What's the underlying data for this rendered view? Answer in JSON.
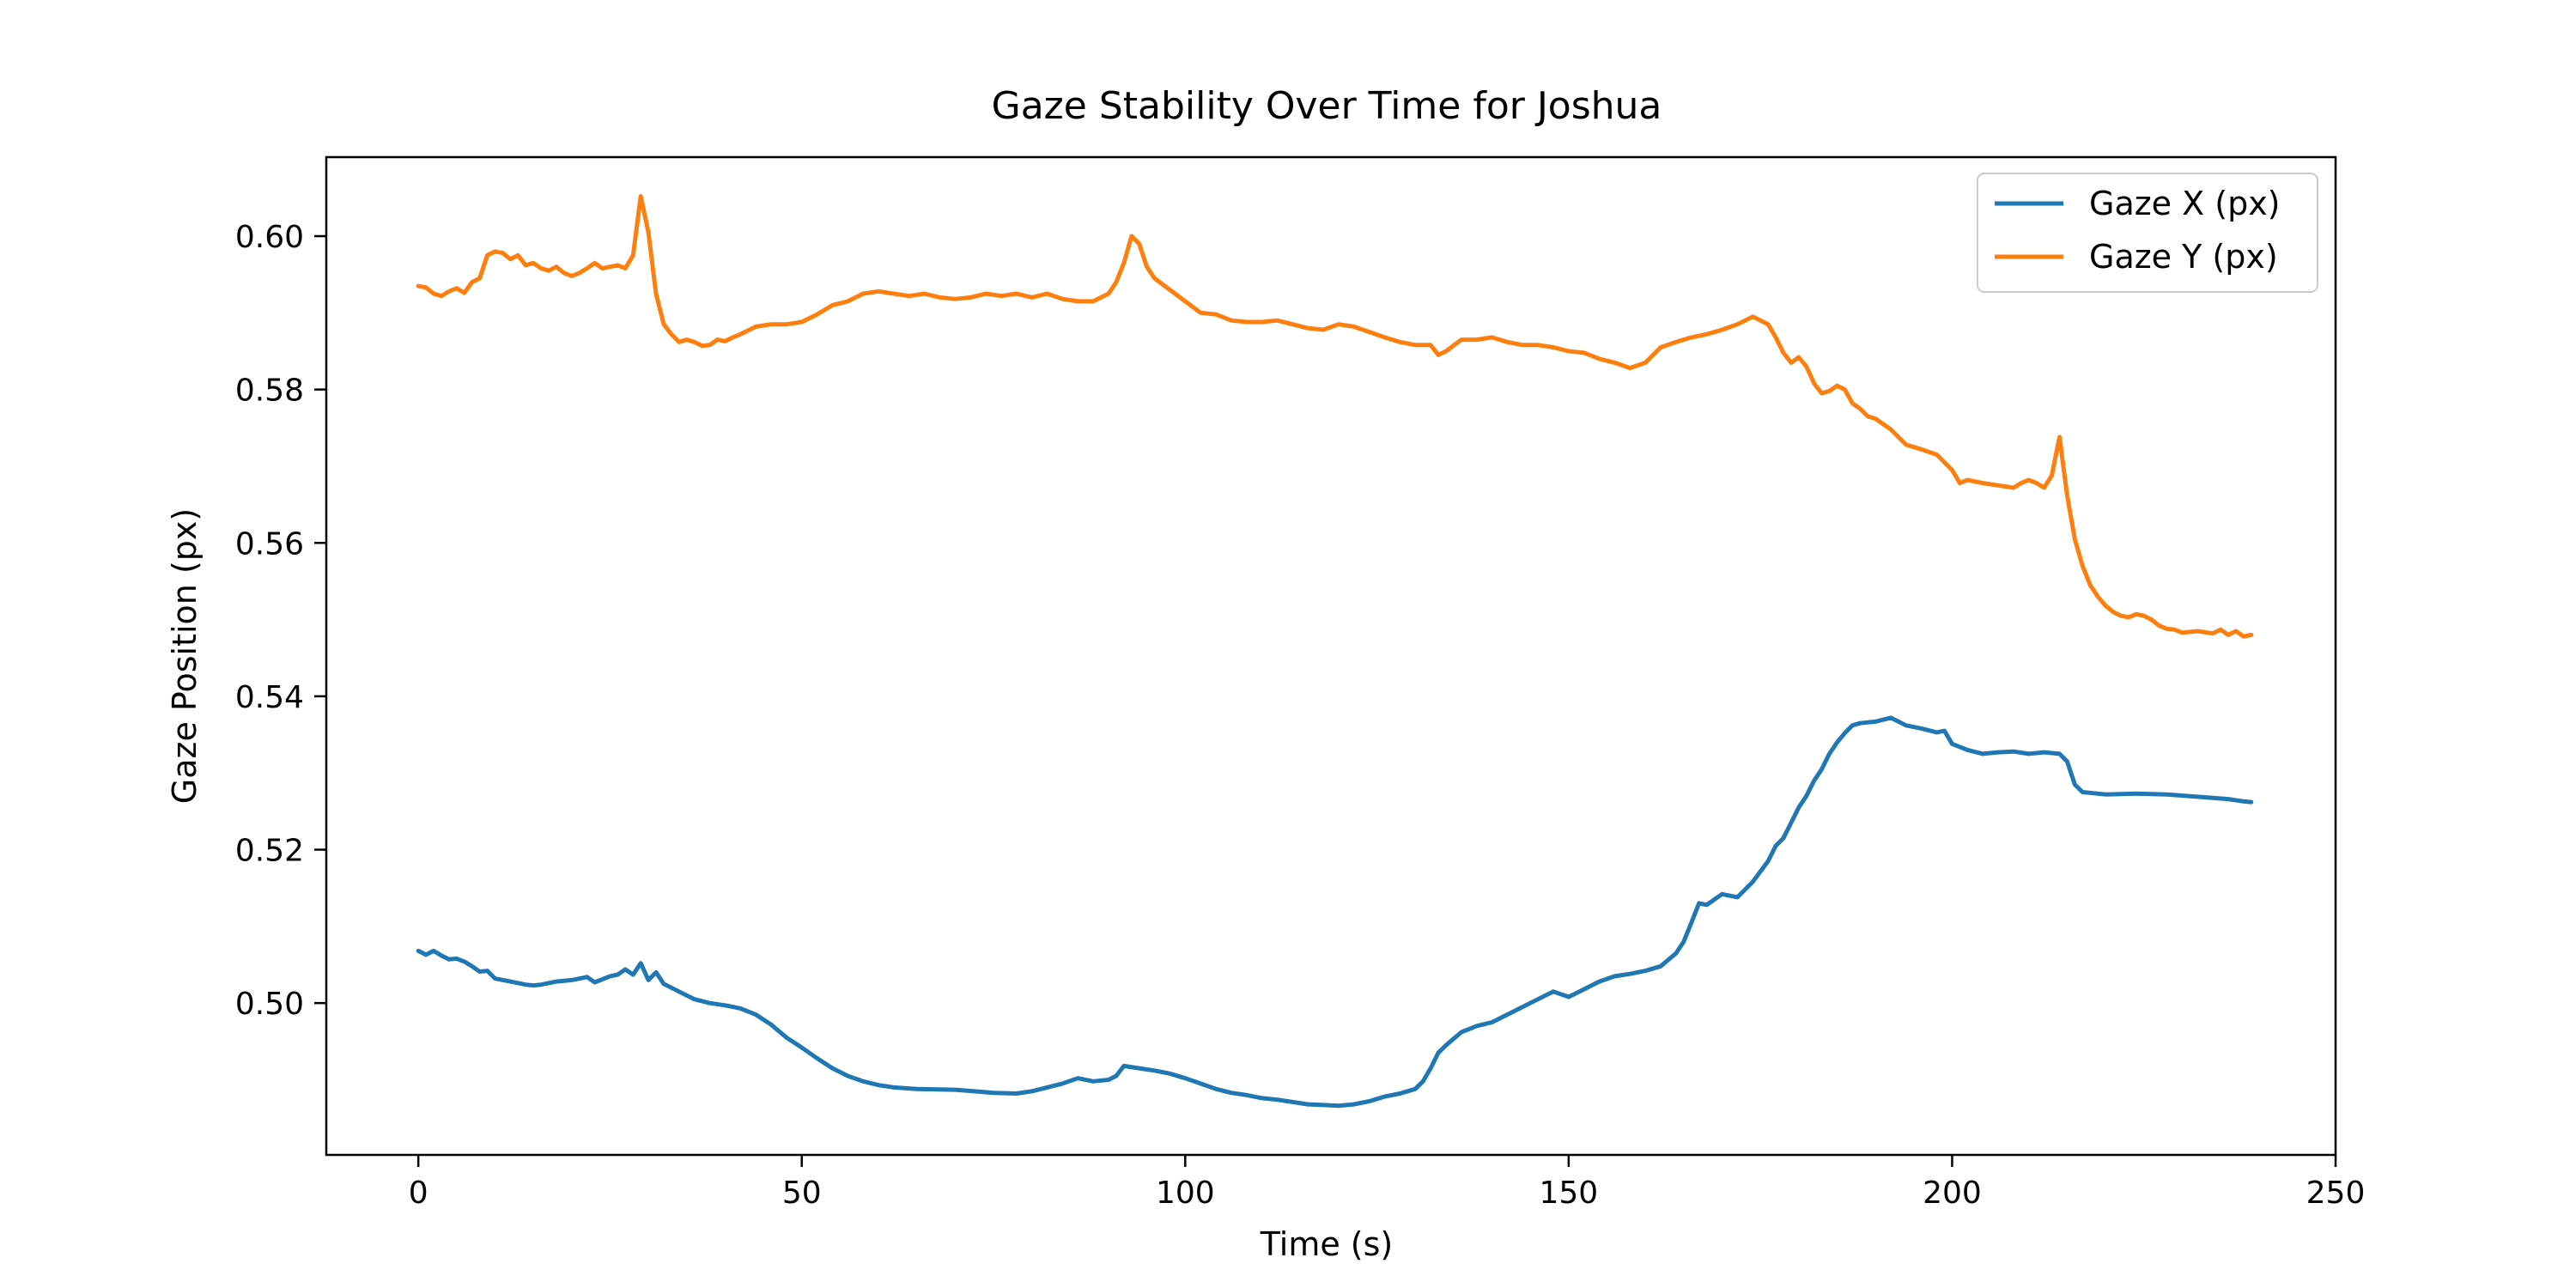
{
  "chart_data": {
    "type": "line",
    "title": "Gaze Stability Over Time for Joshua",
    "xlabel": "Time (s)",
    "ylabel": "Gaze Position (px)",
    "xlim": [
      -12,
      250
    ],
    "ylim": [
      0.4802,
      0.6103
    ],
    "xticks": [
      0,
      50,
      100,
      150,
      200,
      250
    ],
    "xtick_labels": [
      "0",
      "50",
      "100",
      "150",
      "200",
      "250"
    ],
    "yticks": [
      0.5,
      0.52,
      0.54,
      0.56,
      0.58,
      0.6
    ],
    "ytick_labels": [
      "0.50",
      "0.52",
      "0.54",
      "0.56",
      "0.58",
      "0.60"
    ],
    "grid": false,
    "legend": "top-right",
    "series": [
      {
        "name": "Gaze X (px)",
        "color": "#1f77b4",
        "points": [
          [
            0,
            0.5068
          ],
          [
            1,
            0.5063
          ],
          [
            2,
            0.5068
          ],
          [
            3,
            0.5062
          ],
          [
            4,
            0.5057
          ],
          [
            5,
            0.5058
          ],
          [
            6,
            0.5054
          ],
          [
            7,
            0.5048
          ],
          [
            8,
            0.5041
          ],
          [
            9,
            0.5042
          ],
          [
            10,
            0.5032
          ],
          [
            12,
            0.5028
          ],
          [
            14,
            0.5024
          ],
          [
            15,
            0.5023
          ],
          [
            16,
            0.5024
          ],
          [
            18,
            0.5028
          ],
          [
            20,
            0.503
          ],
          [
            22,
            0.5034
          ],
          [
            23,
            0.5027
          ],
          [
            25,
            0.5035
          ],
          [
            26,
            0.5037
          ],
          [
            27,
            0.5044
          ],
          [
            28,
            0.5037
          ],
          [
            29,
            0.5052
          ],
          [
            30,
            0.503
          ],
          [
            31,
            0.504
          ],
          [
            32,
            0.5025
          ],
          [
            34,
            0.5015
          ],
          [
            36,
            0.5005
          ],
          [
            38,
            0.5
          ],
          [
            40,
            0.4997
          ],
          [
            41,
            0.4995
          ],
          [
            42,
            0.4993
          ],
          [
            44,
            0.4985
          ],
          [
            46,
            0.4972
          ],
          [
            48,
            0.4955
          ],
          [
            50,
            0.4942
          ],
          [
            52,
            0.4928
          ],
          [
            54,
            0.4915
          ],
          [
            56,
            0.4905
          ],
          [
            58,
            0.4898
          ],
          [
            60,
            0.4893
          ],
          [
            62,
            0.489
          ],
          [
            65,
            0.4888
          ],
          [
            70,
            0.4887
          ],
          [
            75,
            0.4883
          ],
          [
            78,
            0.4882
          ],
          [
            80,
            0.4885
          ],
          [
            82,
            0.489
          ],
          [
            84,
            0.4895
          ],
          [
            86,
            0.4902
          ],
          [
            88,
            0.4898
          ],
          [
            90,
            0.49
          ],
          [
            91,
            0.4905
          ],
          [
            92,
            0.4918
          ],
          [
            94,
            0.4915
          ],
          [
            96,
            0.4912
          ],
          [
            98,
            0.4908
          ],
          [
            100,
            0.4902
          ],
          [
            102,
            0.4895
          ],
          [
            104,
            0.4888
          ],
          [
            106,
            0.4883
          ],
          [
            108,
            0.488
          ],
          [
            110,
            0.4876
          ],
          [
            112,
            0.4874
          ],
          [
            114,
            0.4871
          ],
          [
            116,
            0.4868
          ],
          [
            118,
            0.4867
          ],
          [
            120,
            0.4866
          ],
          [
            122,
            0.4868
          ],
          [
            124,
            0.4872
          ],
          [
            126,
            0.4878
          ],
          [
            128,
            0.4882
          ],
          [
            130,
            0.4888
          ],
          [
            131,
            0.4898
          ],
          [
            132,
            0.4915
          ],
          [
            133,
            0.4935
          ],
          [
            134,
            0.4945
          ],
          [
            136,
            0.4962
          ],
          [
            138,
            0.497
          ],
          [
            140,
            0.4975
          ],
          [
            142,
            0.4985
          ],
          [
            144,
            0.4995
          ],
          [
            146,
            0.5005
          ],
          [
            148,
            0.5015
          ],
          [
            150,
            0.5008
          ],
          [
            152,
            0.5018
          ],
          [
            154,
            0.5028
          ],
          [
            156,
            0.5035
          ],
          [
            158,
            0.5038
          ],
          [
            160,
            0.5042
          ],
          [
            162,
            0.5048
          ],
          [
            164,
            0.5065
          ],
          [
            165,
            0.508
          ],
          [
            166,
            0.5105
          ],
          [
            167,
            0.513
          ],
          [
            168,
            0.5128
          ],
          [
            170,
            0.5142
          ],
          [
            172,
            0.5138
          ],
          [
            174,
            0.5158
          ],
          [
            176,
            0.5185
          ],
          [
            177,
            0.5205
          ],
          [
            178,
            0.5215
          ],
          [
            179,
            0.5235
          ],
          [
            180,
            0.5255
          ],
          [
            181,
            0.527
          ],
          [
            182,
            0.529
          ],
          [
            183,
            0.5305
          ],
          [
            184,
            0.5325
          ],
          [
            185,
            0.534
          ],
          [
            186,
            0.5352
          ],
          [
            187,
            0.5362
          ],
          [
            188,
            0.5365
          ],
          [
            190,
            0.5367
          ],
          [
            192,
            0.5372
          ],
          [
            194,
            0.5362
          ],
          [
            196,
            0.5358
          ],
          [
            198,
            0.5353
          ],
          [
            199,
            0.5355
          ],
          [
            200,
            0.5338
          ],
          [
            202,
            0.533
          ],
          [
            204,
            0.5325
          ],
          [
            206,
            0.5327
          ],
          [
            208,
            0.5328
          ],
          [
            210,
            0.5325
          ],
          [
            212,
            0.5327
          ],
          [
            214,
            0.5325
          ],
          [
            215,
            0.5315
          ],
          [
            216,
            0.5285
          ],
          [
            217,
            0.5275
          ],
          [
            220,
            0.5272
          ],
          [
            224,
            0.5273
          ],
          [
            228,
            0.5272
          ],
          [
            232,
            0.5269
          ],
          [
            236,
            0.5266
          ],
          [
            238,
            0.5263
          ],
          [
            239,
            0.5262
          ]
        ]
      },
      {
        "name": "Gaze Y (px)",
        "color": "#ff7f0e",
        "points": [
          [
            0,
            0.5935
          ],
          [
            1,
            0.5933
          ],
          [
            2,
            0.5925
          ],
          [
            3,
            0.5922
          ],
          [
            4,
            0.5928
          ],
          [
            5,
            0.5932
          ],
          [
            6,
            0.5926
          ],
          [
            7,
            0.594
          ],
          [
            8,
            0.5945
          ],
          [
            9,
            0.5975
          ],
          [
            10,
            0.598
          ],
          [
            11,
            0.5978
          ],
          [
            12,
            0.597
          ],
          [
            13,
            0.5975
          ],
          [
            14,
            0.5962
          ],
          [
            15,
            0.5965
          ],
          [
            16,
            0.5958
          ],
          [
            17,
            0.5955
          ],
          [
            18,
            0.596
          ],
          [
            19,
            0.5952
          ],
          [
            20,
            0.5948
          ],
          [
            21,
            0.5952
          ],
          [
            22,
            0.5958
          ],
          [
            23,
            0.5965
          ],
          [
            24,
            0.5958
          ],
          [
            25,
            0.596
          ],
          [
            26,
            0.5962
          ],
          [
            27,
            0.5958
          ],
          [
            28,
            0.5975
          ],
          [
            29,
            0.6052
          ],
          [
            30,
            0.6005
          ],
          [
            31,
            0.5925
          ],
          [
            32,
            0.5885
          ],
          [
            33,
            0.5872
          ],
          [
            34,
            0.5862
          ],
          [
            35,
            0.5865
          ],
          [
            36,
            0.5862
          ],
          [
            37,
            0.5857
          ],
          [
            38,
            0.5858
          ],
          [
            39,
            0.5865
          ],
          [
            40,
            0.5863
          ],
          [
            41,
            0.5868
          ],
          [
            42,
            0.5872
          ],
          [
            44,
            0.5882
          ],
          [
            46,
            0.5885
          ],
          [
            48,
            0.5885
          ],
          [
            50,
            0.5888
          ],
          [
            52,
            0.5898
          ],
          [
            54,
            0.591
          ],
          [
            56,
            0.5915
          ],
          [
            58,
            0.5925
          ],
          [
            60,
            0.5928
          ],
          [
            62,
            0.5925
          ],
          [
            64,
            0.5922
          ],
          [
            66,
            0.5925
          ],
          [
            68,
            0.592
          ],
          [
            70,
            0.5918
          ],
          [
            72,
            0.592
          ],
          [
            74,
            0.5925
          ],
          [
            76,
            0.5922
          ],
          [
            78,
            0.5925
          ],
          [
            80,
            0.592
          ],
          [
            82,
            0.5925
          ],
          [
            84,
            0.5918
          ],
          [
            86,
            0.5915
          ],
          [
            88,
            0.5915
          ],
          [
            90,
            0.5925
          ],
          [
            91,
            0.594
          ],
          [
            92,
            0.5965
          ],
          [
            93,
            0.6
          ],
          [
            94,
            0.599
          ],
          [
            95,
            0.596
          ],
          [
            96,
            0.5945
          ],
          [
            98,
            0.593
          ],
          [
            100,
            0.5915
          ],
          [
            102,
            0.59
          ],
          [
            104,
            0.5898
          ],
          [
            106,
            0.589
          ],
          [
            108,
            0.5888
          ],
          [
            110,
            0.5888
          ],
          [
            112,
            0.589
          ],
          [
            114,
            0.5885
          ],
          [
            116,
            0.588
          ],
          [
            118,
            0.5878
          ],
          [
            120,
            0.5885
          ],
          [
            122,
            0.5882
          ],
          [
            124,
            0.5875
          ],
          [
            126,
            0.5868
          ],
          [
            128,
            0.5862
          ],
          [
            130,
            0.5858
          ],
          [
            132,
            0.5858
          ],
          [
            133,
            0.5845
          ],
          [
            134,
            0.585
          ],
          [
            136,
            0.5865
          ],
          [
            138,
            0.5865
          ],
          [
            140,
            0.5868
          ],
          [
            142,
            0.5862
          ],
          [
            144,
            0.5858
          ],
          [
            146,
            0.5858
          ],
          [
            148,
            0.5855
          ],
          [
            150,
            0.585
          ],
          [
            152,
            0.5848
          ],
          [
            154,
            0.584
          ],
          [
            156,
            0.5835
          ],
          [
            158,
            0.5828
          ],
          [
            160,
            0.5835
          ],
          [
            162,
            0.5855
          ],
          [
            164,
            0.5862
          ],
          [
            166,
            0.5868
          ],
          [
            168,
            0.5872
          ],
          [
            170,
            0.5878
          ],
          [
            172,
            0.5885
          ],
          [
            174,
            0.5895
          ],
          [
            176,
            0.5885
          ],
          [
            177,
            0.5868
          ],
          [
            178,
            0.5848
          ],
          [
            179,
            0.5835
          ],
          [
            180,
            0.5842
          ],
          [
            181,
            0.583
          ],
          [
            182,
            0.5808
          ],
          [
            183,
            0.5795
          ],
          [
            184,
            0.5798
          ],
          [
            185,
            0.5805
          ],
          [
            186,
            0.58
          ],
          [
            187,
            0.5782
          ],
          [
            188,
            0.5775
          ],
          [
            189,
            0.5765
          ],
          [
            190,
            0.5762
          ],
          [
            192,
            0.5748
          ],
          [
            194,
            0.5728
          ],
          [
            196,
            0.5722
          ],
          [
            198,
            0.5715
          ],
          [
            200,
            0.5695
          ],
          [
            201,
            0.5678
          ],
          [
            202,
            0.5682
          ],
          [
            204,
            0.5678
          ],
          [
            206,
            0.5675
          ],
          [
            208,
            0.5672
          ],
          [
            209,
            0.5678
          ],
          [
            210,
            0.5682
          ],
          [
            211,
            0.5678
          ],
          [
            212,
            0.5672
          ],
          [
            213,
            0.5688
          ],
          [
            214,
            0.5738
          ],
          [
            215,
            0.5662
          ],
          [
            216,
            0.5605
          ],
          [
            217,
            0.557
          ],
          [
            218,
            0.5545
          ],
          [
            219,
            0.553
          ],
          [
            220,
            0.5518
          ],
          [
            221,
            0.551
          ],
          [
            222,
            0.5505
          ],
          [
            223,
            0.5503
          ],
          [
            224,
            0.5507
          ],
          [
            225,
            0.5505
          ],
          [
            226,
            0.55
          ],
          [
            227,
            0.5492
          ],
          [
            228,
            0.5488
          ],
          [
            229,
            0.5487
          ],
          [
            230,
            0.5483
          ],
          [
            232,
            0.5485
          ],
          [
            234,
            0.5482
          ],
          [
            235,
            0.5487
          ],
          [
            236,
            0.548
          ],
          [
            237,
            0.5485
          ],
          [
            238,
            0.5478
          ],
          [
            239,
            0.548
          ]
        ]
      }
    ]
  }
}
